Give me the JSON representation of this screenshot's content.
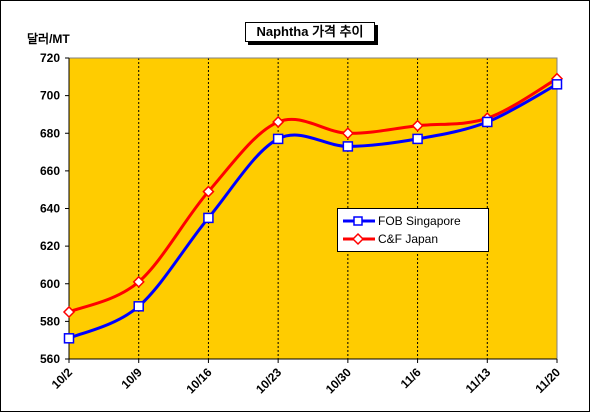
{
  "chart_data": {
    "type": "line",
    "title": "Naphtha 가격 추이",
    "ylabel": "달러/MT",
    "xlabel": "",
    "categories": [
      "10/2",
      "10/9",
      "10/16",
      "10/23",
      "10/30",
      "11/6",
      "11/13",
      "11/20"
    ],
    "ylim": [
      560,
      720
    ],
    "yticks": [
      560,
      580,
      600,
      620,
      640,
      660,
      680,
      700,
      720
    ],
    "grid": "vertical",
    "plot_background": "#FFCC00",
    "legend_position": "center-right",
    "series": [
      {
        "name": "FOB Singapore",
        "color": "#0000FF",
        "marker": "square",
        "values": [
          571,
          588,
          635,
          677,
          673,
          677,
          686,
          706
        ]
      },
      {
        "name": "C&F Japan",
        "color": "#FF0000",
        "marker": "diamond",
        "values": [
          585,
          601,
          649,
          686,
          680,
          684,
          688,
          709
        ]
      }
    ]
  }
}
